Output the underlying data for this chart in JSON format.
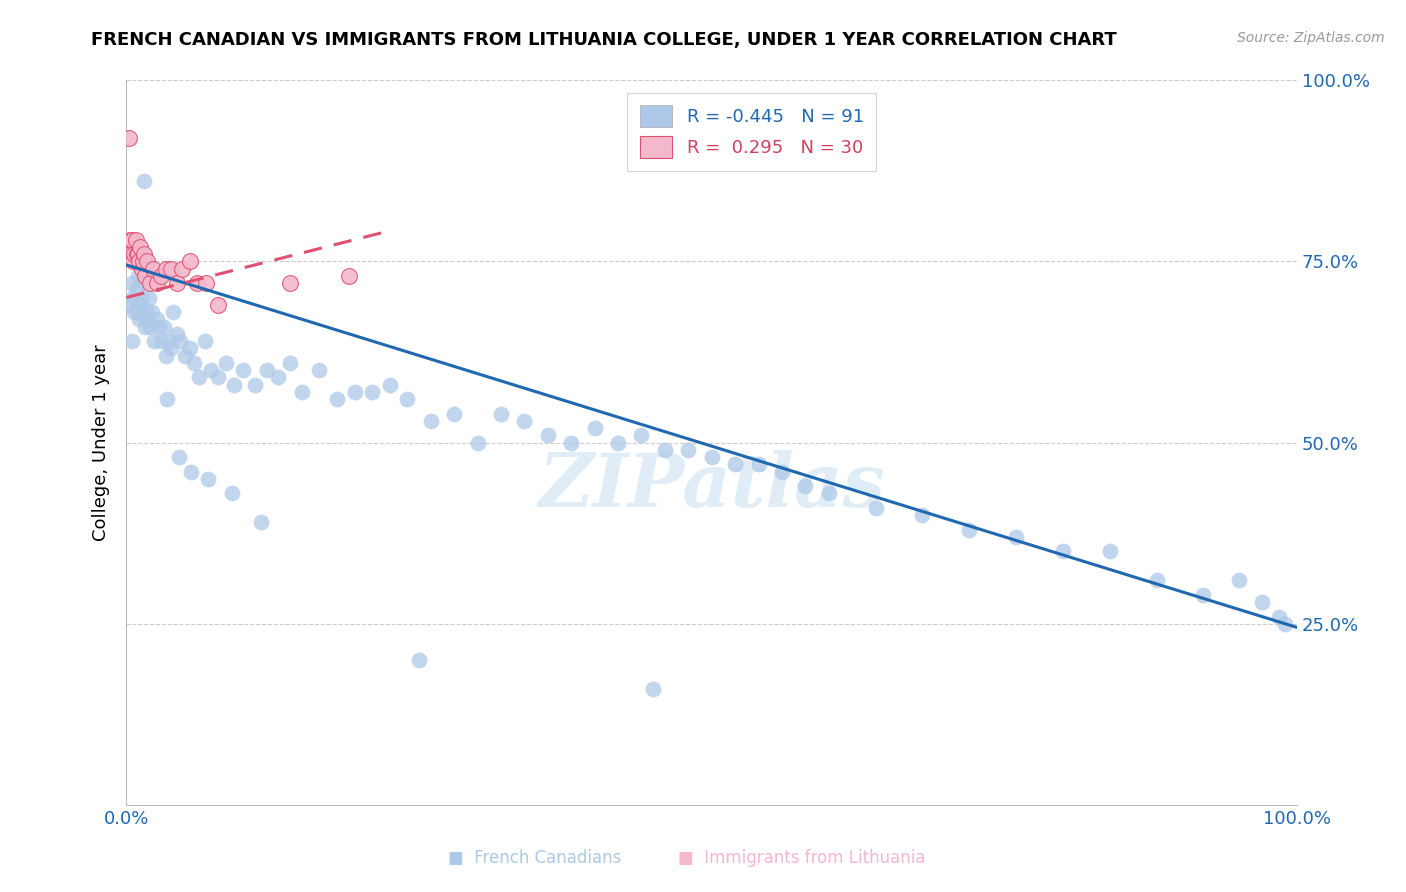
{
  "title": "FRENCH CANADIAN VS IMMIGRANTS FROM LITHUANIA COLLEGE, UNDER 1 YEAR CORRELATION CHART",
  "source": "Source: ZipAtlas.com",
  "ylabel": "College, Under 1 year",
  "blue_R": -0.445,
  "blue_N": 91,
  "pink_R": 0.295,
  "pink_N": 30,
  "blue_color": "#adc8e8",
  "blue_line_color": "#2068b0",
  "pink_color": "#f4b8cc",
  "pink_line_color": "#e05070",
  "pink_line_dashed": true,
  "watermark": "ZIPatlas",
  "legend_label_blue": "French Canadians",
  "legend_label_pink": "Immigrants from Lithuania",
  "blue_scatter_x": [
    0.004,
    0.005,
    0.006,
    0.007,
    0.008,
    0.009,
    0.01,
    0.011,
    0.012,
    0.013,
    0.014,
    0.015,
    0.016,
    0.017,
    0.018,
    0.019,
    0.02,
    0.022,
    0.024,
    0.026,
    0.028,
    0.03,
    0.032,
    0.034,
    0.036,
    0.038,
    0.04,
    0.043,
    0.046,
    0.05,
    0.054,
    0.058,
    0.062,
    0.067,
    0.072,
    0.078,
    0.085,
    0.092,
    0.1,
    0.11,
    0.12,
    0.13,
    0.14,
    0.15,
    0.165,
    0.18,
    0.195,
    0.21,
    0.225,
    0.24,
    0.26,
    0.28,
    0.3,
    0.32,
    0.34,
    0.36,
    0.38,
    0.4,
    0.42,
    0.44,
    0.46,
    0.48,
    0.5,
    0.52,
    0.54,
    0.56,
    0.58,
    0.6,
    0.64,
    0.68,
    0.72,
    0.76,
    0.8,
    0.84,
    0.88,
    0.92,
    0.95,
    0.97,
    0.985,
    0.99,
    0.005,
    0.015,
    0.025,
    0.035,
    0.045,
    0.055,
    0.07,
    0.09,
    0.115,
    0.25,
    0.45
  ],
  "blue_scatter_y": [
    0.69,
    0.72,
    0.7,
    0.68,
    0.71,
    0.68,
    0.73,
    0.67,
    0.69,
    0.7,
    0.68,
    0.72,
    0.66,
    0.67,
    0.68,
    0.7,
    0.66,
    0.68,
    0.64,
    0.67,
    0.66,
    0.64,
    0.66,
    0.62,
    0.64,
    0.63,
    0.68,
    0.65,
    0.64,
    0.62,
    0.63,
    0.61,
    0.59,
    0.64,
    0.6,
    0.59,
    0.61,
    0.58,
    0.6,
    0.58,
    0.6,
    0.59,
    0.61,
    0.57,
    0.6,
    0.56,
    0.57,
    0.57,
    0.58,
    0.56,
    0.53,
    0.54,
    0.5,
    0.54,
    0.53,
    0.51,
    0.5,
    0.52,
    0.5,
    0.51,
    0.49,
    0.49,
    0.48,
    0.47,
    0.47,
    0.46,
    0.44,
    0.43,
    0.41,
    0.4,
    0.38,
    0.37,
    0.35,
    0.35,
    0.31,
    0.29,
    0.31,
    0.28,
    0.26,
    0.25,
    0.64,
    0.86,
    0.73,
    0.56,
    0.48,
    0.46,
    0.45,
    0.43,
    0.39,
    0.2,
    0.16
  ],
  "pink_scatter_x": [
    0.002,
    0.003,
    0.004,
    0.005,
    0.006,
    0.007,
    0.008,
    0.009,
    0.01,
    0.011,
    0.012,
    0.013,
    0.014,
    0.015,
    0.016,
    0.018,
    0.02,
    0.023,
    0.026,
    0.03,
    0.034,
    0.038,
    0.043,
    0.048,
    0.054,
    0.06,
    0.068,
    0.078,
    0.14,
    0.19
  ],
  "pink_scatter_y": [
    0.92,
    0.78,
    0.76,
    0.78,
    0.75,
    0.76,
    0.78,
    0.76,
    0.76,
    0.75,
    0.77,
    0.74,
    0.75,
    0.76,
    0.73,
    0.75,
    0.72,
    0.74,
    0.72,
    0.73,
    0.74,
    0.74,
    0.72,
    0.74,
    0.75,
    0.72,
    0.72,
    0.69,
    0.72,
    0.73
  ],
  "blue_line_x": [
    0.0,
    1.0
  ],
  "blue_line_y": [
    0.745,
    0.245
  ],
  "pink_line_x": [
    0.0,
    0.22
  ],
  "pink_line_y": [
    0.7,
    0.79
  ],
  "xlim": [
    0,
    1.0
  ],
  "ylim": [
    0,
    1.0
  ],
  "ytick_positions": [
    0.25,
    0.5,
    0.75,
    1.0
  ],
  "ytick_labels": [
    "25.0%",
    "50.0%",
    "75.0%",
    "100.0%"
  ],
  "xtick_positions": [
    0.0,
    1.0
  ],
  "xtick_labels": [
    "0.0%",
    "100.0%"
  ],
  "grid_color": "#cccccc",
  "title_fontsize": 13,
  "axis_tick_fontsize": 13,
  "ylabel_fontsize": 13,
  "legend_fontsize": 13,
  "source_fontsize": 10,
  "marker_size": 130,
  "marker_alpha": 0.75
}
